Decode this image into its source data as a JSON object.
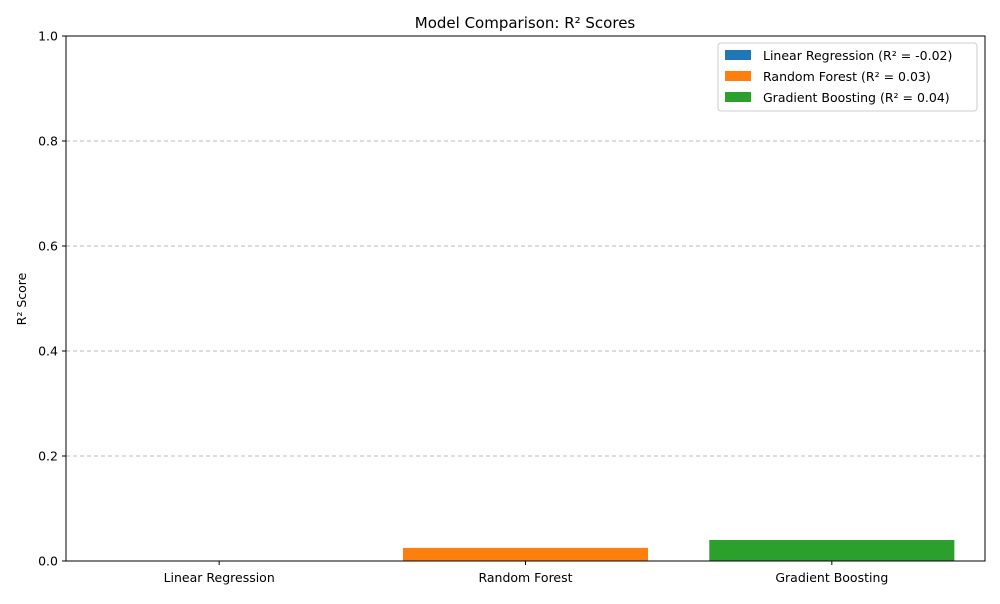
{
  "chart_data": {
    "type": "bar",
    "title": "Model Comparison: R² Scores",
    "xlabel": "",
    "ylabel": "R² Score",
    "ylim": [
      0,
      1.0
    ],
    "yticks": [
      "0.0",
      "0.2",
      "0.4",
      "0.6",
      "0.8",
      "1.0"
    ],
    "grid": "y-dashed",
    "legend_position": "top-right",
    "categories": [
      "Linear Regression",
      "Random Forest",
      "Gradient Boosting"
    ],
    "values": [
      -0.02,
      0.025,
      0.04
    ],
    "colors": [
      "#1f77b4",
      "#ff7f0e",
      "#2ca02c"
    ],
    "legend": [
      "Linear Regression (R² = -0.02)",
      "Random Forest (R² = 0.03)",
      "Gradient Boosting (R² = 0.04)"
    ]
  }
}
